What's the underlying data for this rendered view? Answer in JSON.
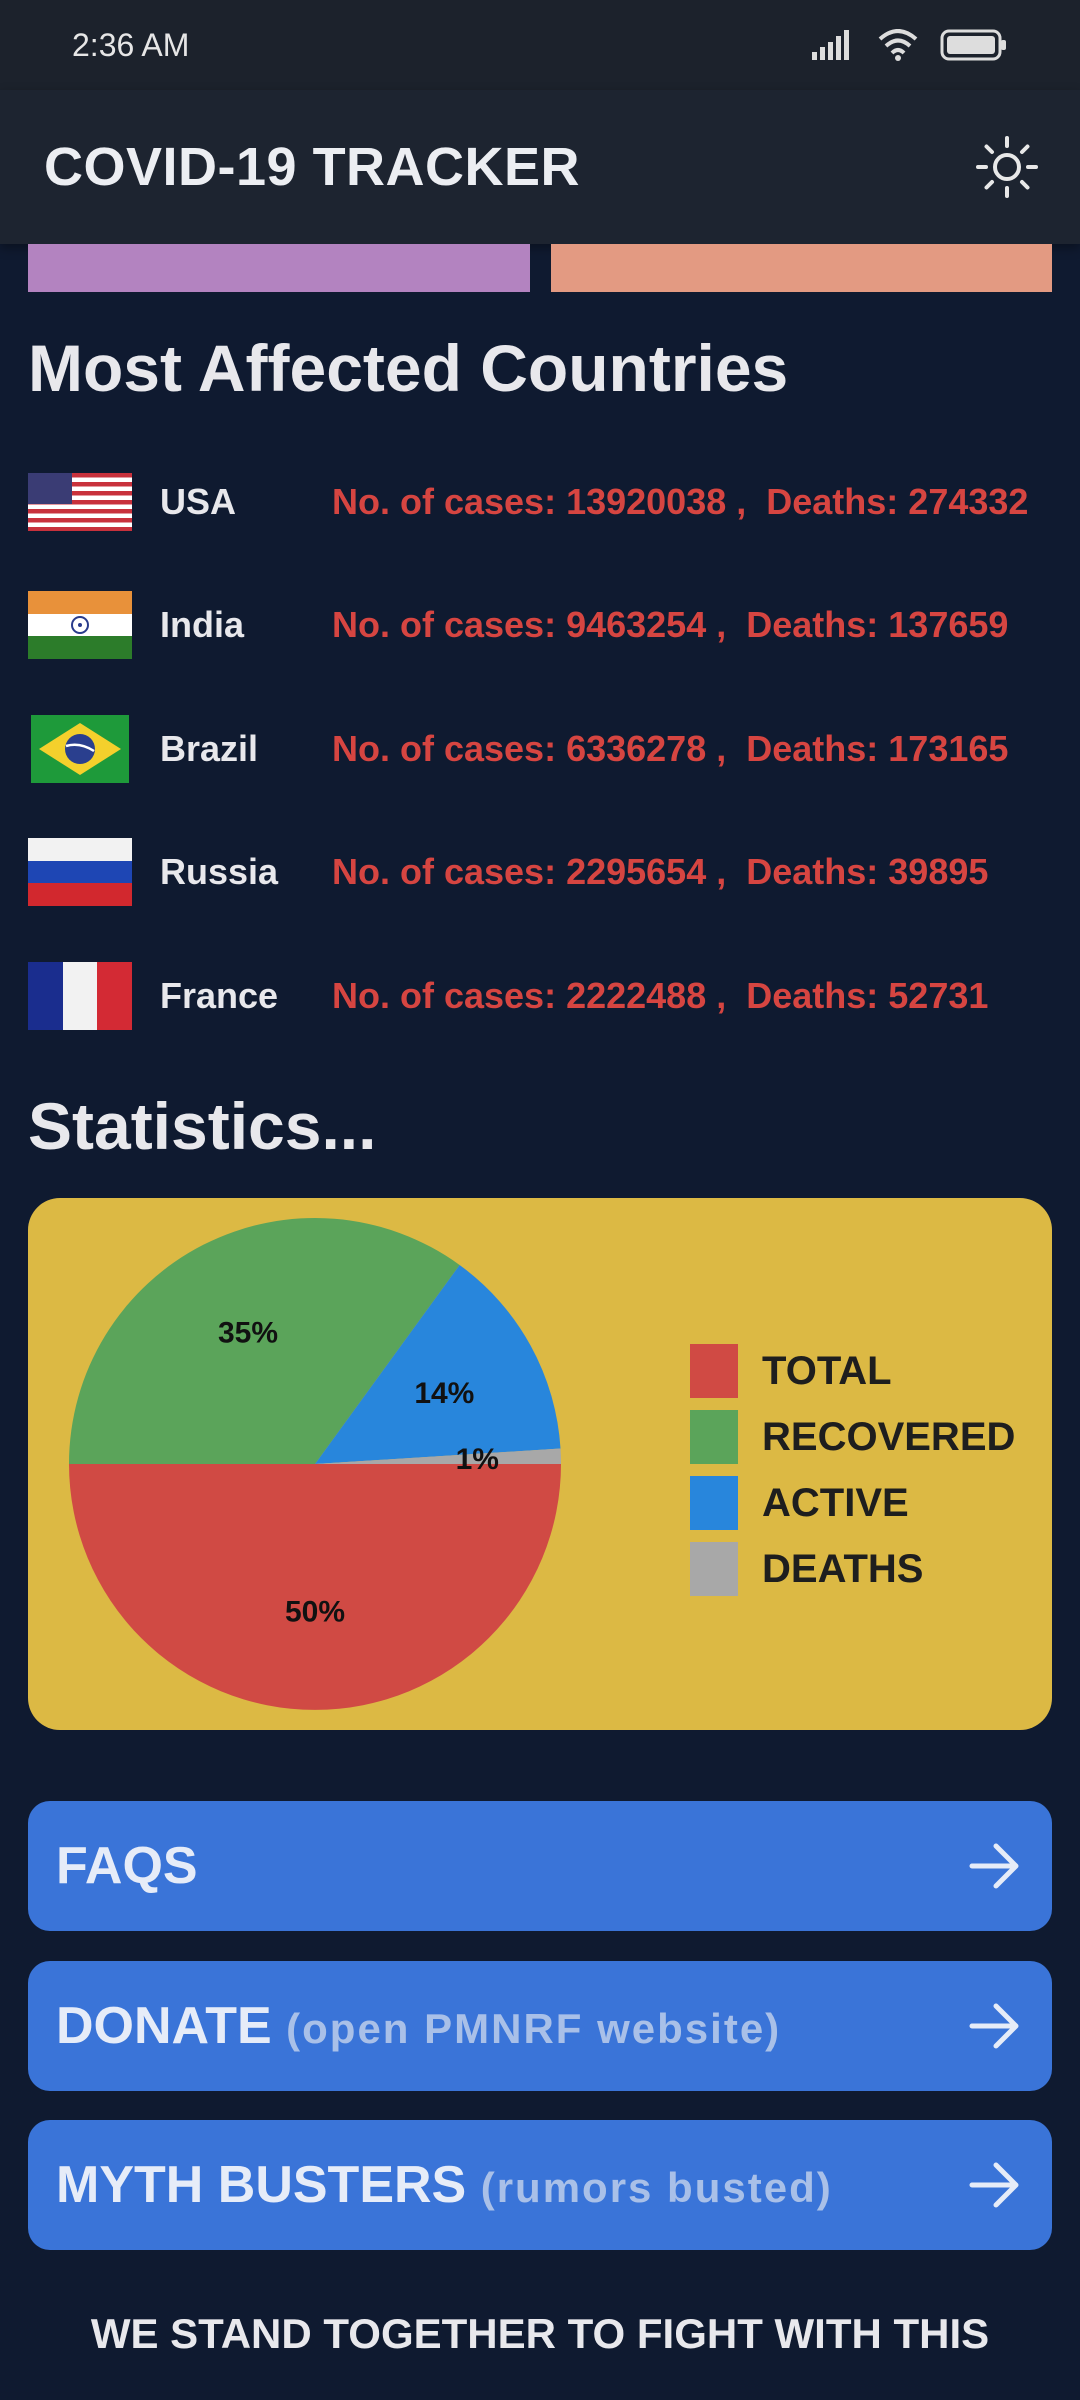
{
  "status_bar": {
    "time": "2:36 AM"
  },
  "app_bar": {
    "title": "COVID-19 TRACKER",
    "theme_icon": "sun-icon"
  },
  "colors": {
    "background": "#0f1a30",
    "accent_button": "#3a74d8",
    "chart_card": "#dcb944",
    "stats_text": "#d64541",
    "strip_left": "#b383c0",
    "strip_right": "#e39a82"
  },
  "countries_section": {
    "title": "Most Affected Countries",
    "items": [
      {
        "name": "USA",
        "flag": "usa-flag-icon",
        "cases_label": "No. of cases: 13920038 ,",
        "deaths_label": "Deaths: 274332"
      },
      {
        "name": "India",
        "flag": "india-flag-icon",
        "cases_label": "No. of cases: 9463254 ,",
        "deaths_label": "Deaths: 137659"
      },
      {
        "name": "Brazil",
        "flag": "brazil-flag-icon",
        "cases_label": "No. of cases: 6336278 ,",
        "deaths_label": "Deaths: 173165"
      },
      {
        "name": "Russia",
        "flag": "russia-flag-icon",
        "cases_label": "No. of cases: 2295654 ,",
        "deaths_label": "Deaths: 39895"
      },
      {
        "name": "France",
        "flag": "france-flag-icon",
        "cases_label": "No. of cases: 2222488 ,",
        "deaths_label": "Deaths: 52731"
      }
    ]
  },
  "statistics_section": {
    "title": "Statistics..."
  },
  "chart_data": {
    "type": "pie",
    "title": "",
    "series": [
      {
        "name": "TOTAL",
        "value": 50,
        "label": "50%",
        "color": "#d04a44"
      },
      {
        "name": "RECOVERED",
        "value": 35,
        "label": "35%",
        "color": "#5ba45a"
      },
      {
        "name": "ACTIVE",
        "value": 14,
        "label": "14%",
        "color": "#2886dc"
      },
      {
        "name": "DEATHS",
        "value": 1,
        "label": "1%",
        "color": "#a8a8a8"
      }
    ],
    "legend_position": "right"
  },
  "buttons": [
    {
      "label": "FAQS",
      "sub": "",
      "icon": "arrow-right-icon"
    },
    {
      "label": "DONATE",
      "sub": "(open PMNRF website)",
      "icon": "arrow-right-icon"
    },
    {
      "label": "MYTH BUSTERS",
      "sub": "(rumors busted)",
      "icon": "arrow-right-icon"
    }
  ],
  "footer": {
    "text": "WE STAND TOGETHER TO FIGHT WITH THIS"
  }
}
